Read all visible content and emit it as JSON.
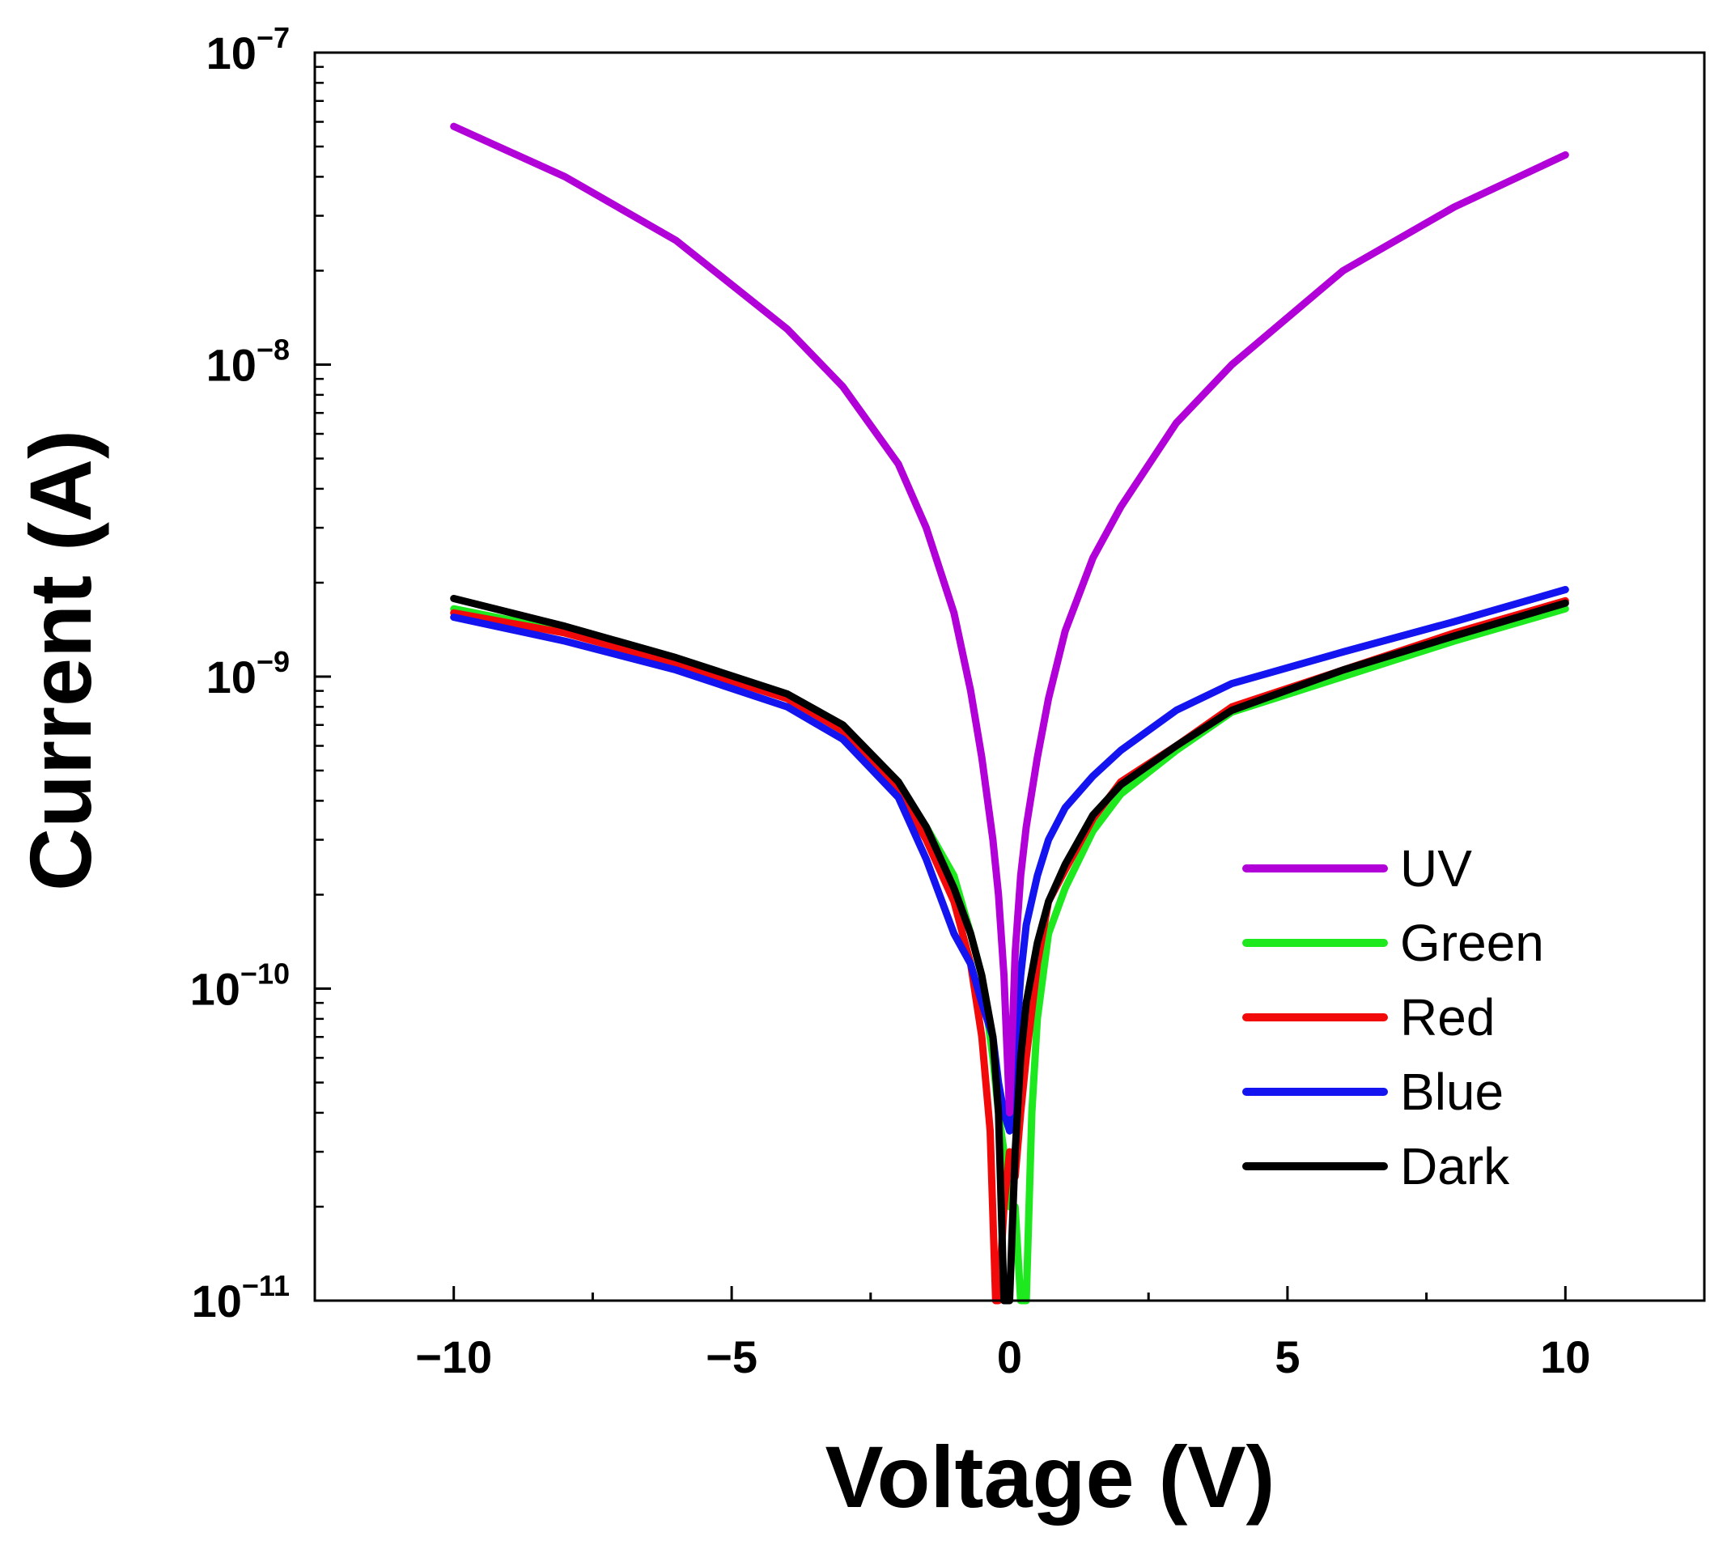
{
  "chart_data": {
    "type": "line",
    "xlabel": "Voltage (V)",
    "ylabel": "Current (A)",
    "xscale": "linear",
    "yscale": "log",
    "xlim": [
      -12.5,
      12.5
    ],
    "ylim": [
      1e-11,
      1e-07
    ],
    "x_ticks": [
      -10,
      -5,
      0,
      5,
      10
    ],
    "x_tick_labels": [
      "−10",
      "−5",
      "0",
      "5",
      "10"
    ],
    "y_ticks": [
      {
        "value": 1e-07,
        "base": "10",
        "exp": "−7"
      },
      {
        "value": 1e-08,
        "base": "10",
        "exp": "−8"
      },
      {
        "value": 1e-09,
        "base": "10",
        "exp": "−9"
      },
      {
        "value": 1e-10,
        "base": "10",
        "exp": "−10"
      },
      {
        "value": 1e-11,
        "base": "10",
        "exp": "−11"
      }
    ],
    "legend_position": "lower-right",
    "series": [
      {
        "name": "UV",
        "color": "#b200d8",
        "x": [
          -10,
          -8,
          -6,
          -4,
          -3,
          -2,
          -1.5,
          -1,
          -0.7,
          -0.5,
          -0.3,
          -0.2,
          -0.1,
          0,
          0.1,
          0.2,
          0.3,
          0.5,
          0.7,
          1,
          1.5,
          2,
          3,
          4,
          6,
          8,
          10
        ],
        "y": [
          5.8e-08,
          4e-08,
          2.5e-08,
          1.3e-08,
          8.5e-09,
          4.8e-09,
          3e-09,
          1.6e-09,
          9e-10,
          5.5e-10,
          3e-10,
          2e-10,
          1.1e-10,
          4e-11,
          1.3e-10,
          2.3e-10,
          3.3e-10,
          5.5e-10,
          8.5e-10,
          1.4e-09,
          2.4e-09,
          3.5e-09,
          6.5e-09,
          1e-08,
          2e-08,
          3.2e-08,
          4.7e-08
        ]
      },
      {
        "name": "Green",
        "color": "#1ee81e",
        "x": [
          -10,
          -8,
          -6,
          -4,
          -3,
          -2,
          -1.5,
          -1,
          -0.7,
          -0.5,
          -0.3,
          -0.2,
          -0.1,
          0,
          0.1,
          0.2,
          0.3,
          0.4,
          0.5,
          0.7,
          1,
          1.5,
          2,
          3,
          4,
          6,
          8,
          10
        ],
        "y": [
          1.65e-09,
          1.4e-09,
          1.12e-09,
          8.5e-10,
          6.8e-10,
          4.5e-10,
          3.3e-10,
          2.3e-10,
          1.5e-10,
          1.1e-10,
          6e-11,
          4e-11,
          3e-11,
          2e-11,
          2e-11,
          1e-11,
          1e-11,
          4e-11,
          8e-11,
          1.5e-10,
          2.1e-10,
          3.2e-10,
          4.2e-10,
          5.8e-10,
          7.7e-10,
          1e-09,
          1.3e-09,
          1.65e-09
        ]
      },
      {
        "name": "Red",
        "color": "#f20a0a",
        "x": [
          -10,
          -8,
          -6,
          -4,
          -3,
          -2,
          -1.5,
          -1,
          -0.7,
          -0.5,
          -0.35,
          -0.25,
          -0.2,
          -0.1,
          0,
          0.1,
          0.2,
          0.3,
          0.5,
          0.7,
          1,
          1.5,
          2,
          3,
          4,
          6,
          8,
          10
        ],
        "y": [
          1.6e-09,
          1.38e-09,
          1.1e-09,
          8.5e-10,
          6.7e-10,
          4.3e-10,
          3e-10,
          1.9e-10,
          1.2e-10,
          7e-11,
          3.5e-11,
          1e-11,
          1e-11,
          2e-11,
          3e-11,
          2.5e-11,
          4e-11,
          6e-11,
          1.2e-10,
          1.9e-10,
          2.4e-10,
          3.5e-10,
          4.6e-10,
          6e-10,
          8e-10,
          1.05e-09,
          1.38e-09,
          1.75e-09
        ]
      },
      {
        "name": "Blue",
        "color": "#1414f0",
        "x": [
          -10,
          -8,
          -6,
          -4,
          -3,
          -2,
          -1.5,
          -1,
          -0.7,
          -0.5,
          -0.3,
          -0.2,
          -0.1,
          0,
          0.1,
          0.2,
          0.3,
          0.5,
          0.7,
          1,
          1.5,
          2,
          3,
          4,
          6,
          8,
          10
        ],
        "y": [
          1.55e-09,
          1.3e-09,
          1.05e-09,
          8e-10,
          6.3e-10,
          4.1e-10,
          2.6e-10,
          1.5e-10,
          1.2e-10,
          9e-11,
          7e-11,
          5e-11,
          4e-11,
          3.5e-11,
          6e-11,
          1.1e-10,
          1.6e-10,
          2.3e-10,
          3e-10,
          3.8e-10,
          4.8e-10,
          5.8e-10,
          7.8e-10,
          9.5e-10,
          1.2e-09,
          1.5e-09,
          1.9e-09
        ]
      },
      {
        "name": "Dark",
        "color": "#000000",
        "x": [
          -10,
          -8,
          -6,
          -4,
          -3,
          -2,
          -1.5,
          -1,
          -0.7,
          -0.5,
          -0.3,
          -0.2,
          -0.15,
          -0.1,
          0,
          0.1,
          0.2,
          0.3,
          0.5,
          0.7,
          1,
          1.5,
          2,
          3,
          4,
          6,
          8,
          10
        ],
        "y": [
          1.78e-09,
          1.45e-09,
          1.15e-09,
          8.8e-10,
          7e-10,
          4.6e-10,
          3.3e-10,
          2.1e-10,
          1.5e-10,
          1.1e-10,
          7e-11,
          4e-11,
          2e-11,
          1e-11,
          1e-11,
          3e-11,
          6e-11,
          9e-11,
          1.4e-10,
          1.9e-10,
          2.5e-10,
          3.6e-10,
          4.5e-10,
          6e-10,
          7.8e-10,
          1.05e-09,
          1.35e-09,
          1.72e-09
        ]
      }
    ]
  }
}
